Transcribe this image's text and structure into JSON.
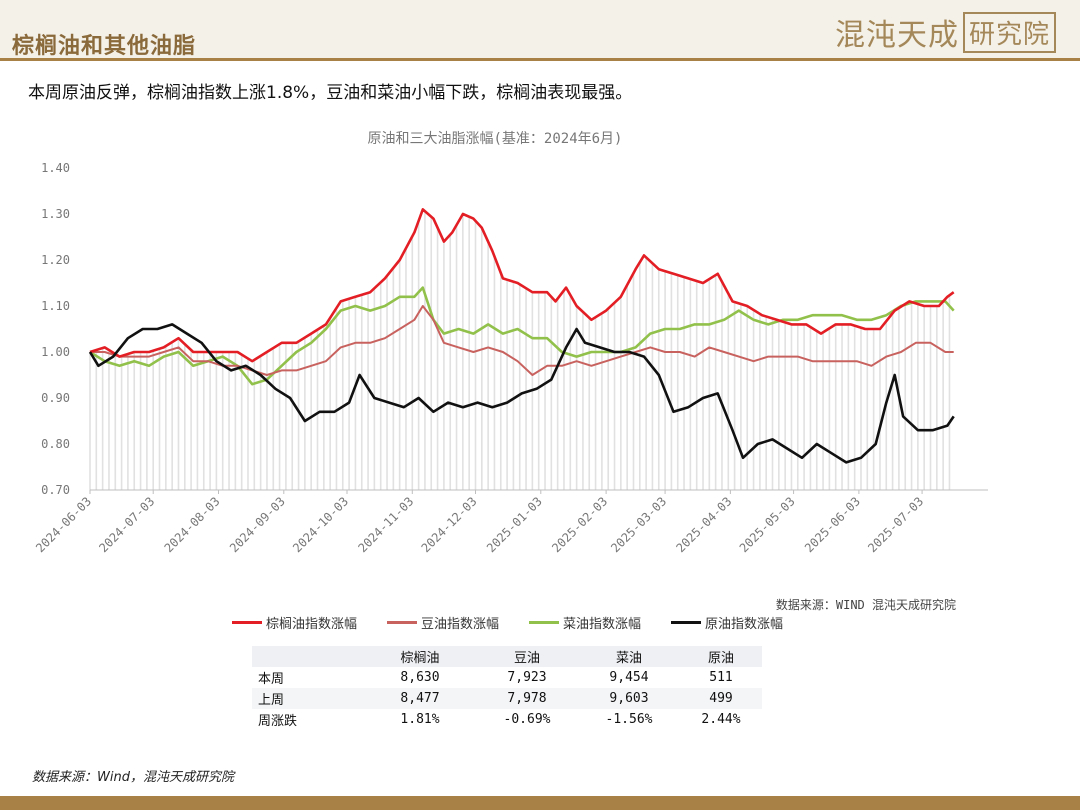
{
  "page": {
    "title": "棕榈油和其他油脂",
    "subtitle": "本周原油反弹，棕榈油指数上涨1.8%，豆油和菜油小幅下跌，棕榈油表现最强。",
    "logo_text": "混沌天成",
    "logo_box_text": "研究院",
    "chart_source": "数据来源：WIND 混沌天成研究院",
    "footer_source": "数据来源：Wind，混沌天成研究院"
  },
  "colors": {
    "palm": "#e31e24",
    "soy": "#c8625f",
    "rape": "#92c14b",
    "crude": "#111111",
    "bars": "#d4d4d4",
    "accent": "#a78146"
  },
  "chart_data": {
    "type": "line",
    "title": "原油和三大油脂涨幅(基准：2024年6月)",
    "ylim": [
      0.7,
      1.4
    ],
    "yticks": [
      "1.40",
      "1.30",
      "1.20",
      "1.10",
      "1.00",
      "0.90",
      "0.80",
      "0.70"
    ],
    "xlim": [
      "2024-06-03",
      "2025-07-21"
    ],
    "xticks": [
      "2024-06-03",
      "2024-07-03",
      "2024-08-03",
      "2024-09-03",
      "2024-10-03",
      "2024-11-03",
      "2024-12-03",
      "2025-01-03",
      "2025-02-03",
      "2025-03-03",
      "2025-04-03",
      "2025-05-03",
      "2025-06-03",
      "2025-07-03"
    ],
    "grid": false,
    "legend_position": "bottom",
    "series": [
      {
        "name": "棕榈油指数涨幅",
        "points": [
          [
            "2024-06-03",
            1.0
          ],
          [
            "2024-06-10",
            1.01
          ],
          [
            "2024-06-17",
            0.99
          ],
          [
            "2024-06-24",
            1.0
          ],
          [
            "2024-07-01",
            1.0
          ],
          [
            "2024-07-08",
            1.01
          ],
          [
            "2024-07-15",
            1.03
          ],
          [
            "2024-07-22",
            1.0
          ],
          [
            "2024-07-29",
            1.0
          ],
          [
            "2024-08-05",
            1.0
          ],
          [
            "2024-08-12",
            1.0
          ],
          [
            "2024-08-19",
            0.98
          ],
          [
            "2024-08-26",
            1.0
          ],
          [
            "2024-09-02",
            1.02
          ],
          [
            "2024-09-09",
            1.02
          ],
          [
            "2024-09-16",
            1.04
          ],
          [
            "2024-09-23",
            1.06
          ],
          [
            "2024-09-30",
            1.11
          ],
          [
            "2024-10-07",
            1.12
          ],
          [
            "2024-10-14",
            1.13
          ],
          [
            "2024-10-21",
            1.16
          ],
          [
            "2024-10-28",
            1.2
          ],
          [
            "2024-11-04",
            1.26
          ],
          [
            "2024-11-08",
            1.31
          ],
          [
            "2024-11-13",
            1.29
          ],
          [
            "2024-11-18",
            1.24
          ],
          [
            "2024-11-22",
            1.26
          ],
          [
            "2024-11-27",
            1.3
          ],
          [
            "2024-12-02",
            1.29
          ],
          [
            "2024-12-06",
            1.27
          ],
          [
            "2024-12-11",
            1.22
          ],
          [
            "2024-12-16",
            1.16
          ],
          [
            "2024-12-23",
            1.15
          ],
          [
            "2024-12-30",
            1.13
          ],
          [
            "2025-01-06",
            1.13
          ],
          [
            "2025-01-10",
            1.11
          ],
          [
            "2025-01-15",
            1.14
          ],
          [
            "2025-01-20",
            1.1
          ],
          [
            "2025-01-27",
            1.07
          ],
          [
            "2025-02-03",
            1.09
          ],
          [
            "2025-02-10",
            1.12
          ],
          [
            "2025-02-17",
            1.18
          ],
          [
            "2025-02-21",
            1.21
          ],
          [
            "2025-02-28",
            1.18
          ],
          [
            "2025-03-07",
            1.17
          ],
          [
            "2025-03-14",
            1.16
          ],
          [
            "2025-03-21",
            1.15
          ],
          [
            "2025-03-28",
            1.17
          ],
          [
            "2025-04-04",
            1.11
          ],
          [
            "2025-04-11",
            1.1
          ],
          [
            "2025-04-18",
            1.08
          ],
          [
            "2025-04-25",
            1.07
          ],
          [
            "2025-05-02",
            1.06
          ],
          [
            "2025-05-09",
            1.06
          ],
          [
            "2025-05-16",
            1.04
          ],
          [
            "2025-05-23",
            1.06
          ],
          [
            "2025-05-30",
            1.06
          ],
          [
            "2025-06-06",
            1.05
          ],
          [
            "2025-06-13",
            1.05
          ],
          [
            "2025-06-20",
            1.09
          ],
          [
            "2025-06-27",
            1.11
          ],
          [
            "2025-07-04",
            1.1
          ],
          [
            "2025-07-11",
            1.1
          ],
          [
            "2025-07-15",
            1.12
          ],
          [
            "2025-07-18",
            1.13
          ]
        ]
      },
      {
        "name": "豆油指数涨幅",
        "points": [
          [
            "2024-06-03",
            1.0
          ],
          [
            "2024-06-10",
            1.0
          ],
          [
            "2024-06-17",
            0.99
          ],
          [
            "2024-06-24",
            0.99
          ],
          [
            "2024-07-01",
            0.99
          ],
          [
            "2024-07-08",
            1.0
          ],
          [
            "2024-07-15",
            1.01
          ],
          [
            "2024-07-22",
            0.98
          ],
          [
            "2024-07-29",
            0.98
          ],
          [
            "2024-08-05",
            0.97
          ],
          [
            "2024-08-12",
            0.97
          ],
          [
            "2024-08-19",
            0.96
          ],
          [
            "2024-08-26",
            0.95
          ],
          [
            "2024-09-02",
            0.96
          ],
          [
            "2024-09-09",
            0.96
          ],
          [
            "2024-09-16",
            0.97
          ],
          [
            "2024-09-23",
            0.98
          ],
          [
            "2024-09-30",
            1.01
          ],
          [
            "2024-10-07",
            1.02
          ],
          [
            "2024-10-14",
            1.02
          ],
          [
            "2024-10-21",
            1.03
          ],
          [
            "2024-10-28",
            1.05
          ],
          [
            "2024-11-04",
            1.07
          ],
          [
            "2024-11-08",
            1.1
          ],
          [
            "2024-11-13",
            1.07
          ],
          [
            "2024-11-18",
            1.02
          ],
          [
            "2024-11-25",
            1.01
          ],
          [
            "2024-12-02",
            1.0
          ],
          [
            "2024-12-09",
            1.01
          ],
          [
            "2024-12-16",
            1.0
          ],
          [
            "2024-12-23",
            0.98
          ],
          [
            "2024-12-30",
            0.95
          ],
          [
            "2025-01-06",
            0.97
          ],
          [
            "2025-01-13",
            0.97
          ],
          [
            "2025-01-20",
            0.98
          ],
          [
            "2025-01-27",
            0.97
          ],
          [
            "2025-02-03",
            0.98
          ],
          [
            "2025-02-10",
            0.99
          ],
          [
            "2025-02-17",
            1.0
          ],
          [
            "2025-02-24",
            1.01
          ],
          [
            "2025-03-03",
            1.0
          ],
          [
            "2025-03-10",
            1.0
          ],
          [
            "2025-03-17",
            0.99
          ],
          [
            "2025-03-24",
            1.01
          ],
          [
            "2025-03-31",
            1.0
          ],
          [
            "2025-04-07",
            0.99
          ],
          [
            "2025-04-14",
            0.98
          ],
          [
            "2025-04-21",
            0.99
          ],
          [
            "2025-04-28",
            0.99
          ],
          [
            "2025-05-05",
            0.99
          ],
          [
            "2025-05-12",
            0.98
          ],
          [
            "2025-05-19",
            0.98
          ],
          [
            "2025-05-26",
            0.98
          ],
          [
            "2025-06-02",
            0.98
          ],
          [
            "2025-06-09",
            0.97
          ],
          [
            "2025-06-16",
            0.99
          ],
          [
            "2025-06-23",
            1.0
          ],
          [
            "2025-06-30",
            1.02
          ],
          [
            "2025-07-07",
            1.02
          ],
          [
            "2025-07-14",
            1.0
          ],
          [
            "2025-07-18",
            1.0
          ]
        ]
      },
      {
        "name": "菜油指数涨幅",
        "points": [
          [
            "2024-06-03",
            1.0
          ],
          [
            "2024-06-10",
            0.98
          ],
          [
            "2024-06-17",
            0.97
          ],
          [
            "2024-06-24",
            0.98
          ],
          [
            "2024-07-01",
            0.97
          ],
          [
            "2024-07-08",
            0.99
          ],
          [
            "2024-07-15",
            1.0
          ],
          [
            "2024-07-22",
            0.97
          ],
          [
            "2024-07-29",
            0.98
          ],
          [
            "2024-08-05",
            0.99
          ],
          [
            "2024-08-12",
            0.97
          ],
          [
            "2024-08-19",
            0.93
          ],
          [
            "2024-08-26",
            0.94
          ],
          [
            "2024-09-02",
            0.97
          ],
          [
            "2024-09-09",
            1.0
          ],
          [
            "2024-09-16",
            1.02
          ],
          [
            "2024-09-23",
            1.05
          ],
          [
            "2024-09-30",
            1.09
          ],
          [
            "2024-10-07",
            1.1
          ],
          [
            "2024-10-14",
            1.09
          ],
          [
            "2024-10-21",
            1.1
          ],
          [
            "2024-10-28",
            1.12
          ],
          [
            "2024-11-04",
            1.12
          ],
          [
            "2024-11-08",
            1.14
          ],
          [
            "2024-11-13",
            1.07
          ],
          [
            "2024-11-18",
            1.04
          ],
          [
            "2024-11-25",
            1.05
          ],
          [
            "2024-12-02",
            1.04
          ],
          [
            "2024-12-09",
            1.06
          ],
          [
            "2024-12-16",
            1.04
          ],
          [
            "2024-12-23",
            1.05
          ],
          [
            "2024-12-30",
            1.03
          ],
          [
            "2025-01-06",
            1.03
          ],
          [
            "2025-01-13",
            1.0
          ],
          [
            "2025-01-20",
            0.99
          ],
          [
            "2025-01-27",
            1.0
          ],
          [
            "2025-02-03",
            1.0
          ],
          [
            "2025-02-10",
            1.0
          ],
          [
            "2025-02-17",
            1.01
          ],
          [
            "2025-02-24",
            1.04
          ],
          [
            "2025-03-03",
            1.05
          ],
          [
            "2025-03-10",
            1.05
          ],
          [
            "2025-03-17",
            1.06
          ],
          [
            "2025-03-24",
            1.06
          ],
          [
            "2025-03-31",
            1.07
          ],
          [
            "2025-04-07",
            1.09
          ],
          [
            "2025-04-14",
            1.07
          ],
          [
            "2025-04-21",
            1.06
          ],
          [
            "2025-04-28",
            1.07
          ],
          [
            "2025-05-05",
            1.07
          ],
          [
            "2025-05-12",
            1.08
          ],
          [
            "2025-05-19",
            1.08
          ],
          [
            "2025-05-26",
            1.08
          ],
          [
            "2025-06-02",
            1.07
          ],
          [
            "2025-06-09",
            1.07
          ],
          [
            "2025-06-16",
            1.08
          ],
          [
            "2025-06-23",
            1.1
          ],
          [
            "2025-06-30",
            1.11
          ],
          [
            "2025-07-07",
            1.11
          ],
          [
            "2025-07-14",
            1.11
          ],
          [
            "2025-07-18",
            1.09
          ]
        ]
      },
      {
        "name": "原油指数涨幅",
        "points": [
          [
            "2024-06-03",
            1.0
          ],
          [
            "2024-06-07",
            0.97
          ],
          [
            "2024-06-14",
            0.99
          ],
          [
            "2024-06-21",
            1.03
          ],
          [
            "2024-06-28",
            1.05
          ],
          [
            "2024-07-05",
            1.05
          ],
          [
            "2024-07-12",
            1.06
          ],
          [
            "2024-07-19",
            1.04
          ],
          [
            "2024-07-26",
            1.02
          ],
          [
            "2024-08-02",
            0.98
          ],
          [
            "2024-08-09",
            0.96
          ],
          [
            "2024-08-16",
            0.97
          ],
          [
            "2024-08-23",
            0.95
          ],
          [
            "2024-08-30",
            0.92
          ],
          [
            "2024-09-06",
            0.9
          ],
          [
            "2024-09-13",
            0.85
          ],
          [
            "2024-09-20",
            0.87
          ],
          [
            "2024-09-27",
            0.87
          ],
          [
            "2024-10-04",
            0.89
          ],
          [
            "2024-10-09",
            0.95
          ],
          [
            "2024-10-16",
            0.9
          ],
          [
            "2024-10-23",
            0.89
          ],
          [
            "2024-10-30",
            0.88
          ],
          [
            "2024-11-06",
            0.9
          ],
          [
            "2024-11-13",
            0.87
          ],
          [
            "2024-11-20",
            0.89
          ],
          [
            "2024-11-27",
            0.88
          ],
          [
            "2024-12-04",
            0.89
          ],
          [
            "2024-12-11",
            0.88
          ],
          [
            "2024-12-18",
            0.89
          ],
          [
            "2024-12-25",
            0.91
          ],
          [
            "2025-01-01",
            0.92
          ],
          [
            "2025-01-08",
            0.94
          ],
          [
            "2025-01-15",
            1.01
          ],
          [
            "2025-01-20",
            1.05
          ],
          [
            "2025-01-24",
            1.02
          ],
          [
            "2025-01-31",
            1.01
          ],
          [
            "2025-02-07",
            1.0
          ],
          [
            "2025-02-14",
            1.0
          ],
          [
            "2025-02-21",
            0.99
          ],
          [
            "2025-02-28",
            0.95
          ],
          [
            "2025-03-07",
            0.87
          ],
          [
            "2025-03-14",
            0.88
          ],
          [
            "2025-03-21",
            0.9
          ],
          [
            "2025-03-28",
            0.91
          ],
          [
            "2025-04-04",
            0.83
          ],
          [
            "2025-04-09",
            0.77
          ],
          [
            "2025-04-16",
            0.8
          ],
          [
            "2025-04-23",
            0.81
          ],
          [
            "2025-04-30",
            0.79
          ],
          [
            "2025-05-07",
            0.77
          ],
          [
            "2025-05-14",
            0.8
          ],
          [
            "2025-05-21",
            0.78
          ],
          [
            "2025-05-28",
            0.76
          ],
          [
            "2025-06-04",
            0.77
          ],
          [
            "2025-06-11",
            0.8
          ],
          [
            "2025-06-16",
            0.89
          ],
          [
            "2025-06-20",
            0.95
          ],
          [
            "2025-06-24",
            0.86
          ],
          [
            "2025-07-01",
            0.83
          ],
          [
            "2025-07-08",
            0.83
          ],
          [
            "2025-07-15",
            0.84
          ],
          [
            "2025-07-18",
            0.86
          ]
        ]
      }
    ],
    "table": {
      "headers": [
        "",
        "棕榈油",
        "豆油",
        "菜油",
        "原油"
      ],
      "rows": [
        {
          "label": "本周",
          "values": [
            "8,630",
            "7,923",
            "9,454",
            "511"
          ]
        },
        {
          "label": "上周",
          "values": [
            "8,477",
            "7,978",
            "9,603",
            "499"
          ]
        },
        {
          "label": "周涨跌",
          "values": [
            "1.81%",
            "-0.69%",
            "-1.56%",
            "2.44%"
          ]
        }
      ]
    }
  }
}
